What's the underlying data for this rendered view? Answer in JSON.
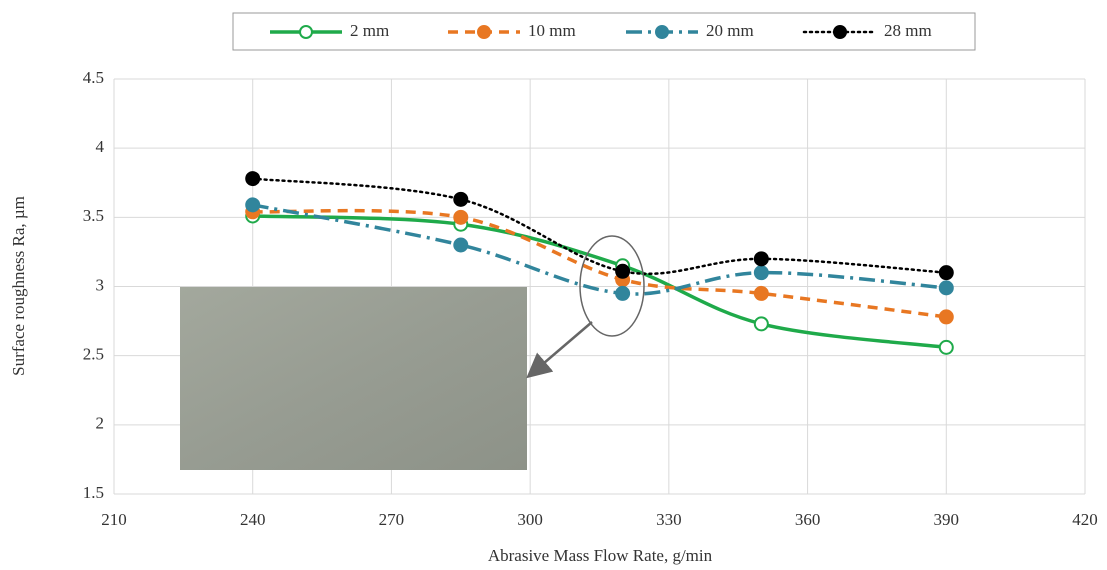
{
  "chart_data": {
    "type": "line",
    "x_label": "Abrasive Mass Flow Rate, g/min",
    "y_label": "Surface roughness Ra, µm",
    "x": [
      240,
      285,
      320,
      350,
      390
    ],
    "series": [
      {
        "name": "2 mm",
        "color": "#1faa4a",
        "style": "solid",
        "marker": "open",
        "values": [
          3.51,
          3.45,
          3.15,
          2.73,
          2.56
        ]
      },
      {
        "name": "10 mm",
        "color": "#e87722",
        "style": "dashed",
        "marker": "filled",
        "values": [
          3.54,
          3.5,
          3.05,
          2.95,
          2.78
        ]
      },
      {
        "name": "20 mm",
        "color": "#31859c",
        "style": "dashdot",
        "marker": "filled",
        "values": [
          3.59,
          3.3,
          2.95,
          3.1,
          2.99
        ]
      },
      {
        "name": "28 mm",
        "color": "#000000",
        "style": "dotted",
        "marker": "filled",
        "values": [
          3.78,
          3.63,
          3.11,
          3.2,
          3.1
        ]
      }
    ],
    "xlim": [
      210,
      420
    ],
    "xticks": [
      210,
      240,
      270,
      300,
      330,
      360,
      390,
      420
    ],
    "ylim": [
      1.5,
      4.5
    ],
    "yticks": [
      1.5,
      2,
      2.5,
      3,
      3.5,
      4,
      4.5
    ],
    "grid": true,
    "legend": "top"
  }
}
